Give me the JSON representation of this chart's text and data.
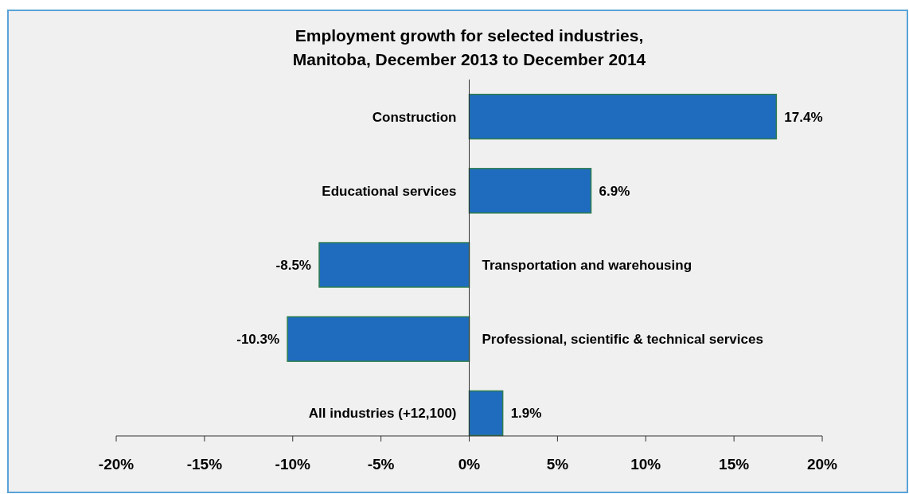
{
  "chart_data": {
    "type": "bar",
    "orientation": "horizontal",
    "title": "Employment growth for selected industries,\nManitoba, December 2013 to December 2014",
    "categories": [
      "Construction",
      "Educational services",
      "Transportation and warehousing",
      "Professional, scientific & technical services",
      "All industries (+12,100)"
    ],
    "values": [
      17.4,
      6.9,
      -8.5,
      -10.3,
      1.9
    ],
    "value_labels": [
      "17.4%",
      "6.9%",
      "-8.5%",
      "-10.3%",
      "1.9%"
    ],
    "color": "#1f6cbf",
    "xlim": [
      -20,
      20
    ],
    "xticks": [
      {
        "value": -20,
        "label": "-20%"
      },
      {
        "value": -15,
        "label": "-15%"
      },
      {
        "value": -10,
        "label": "-10%"
      },
      {
        "value": -5,
        "label": "-5%"
      },
      {
        "value": 0,
        "label": "0%"
      },
      {
        "value": 5,
        "label": "5%"
      },
      {
        "value": 10,
        "label": "10%"
      },
      {
        "value": 15,
        "label": "15%"
      },
      {
        "value": 20,
        "label": "20%"
      }
    ]
  }
}
